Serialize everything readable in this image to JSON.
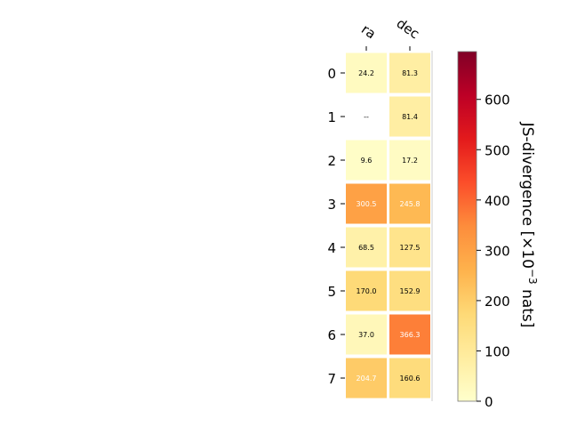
{
  "chart_data": {
    "type": "heatmap",
    "columns": [
      "ra",
      "dec"
    ],
    "rows": [
      "0",
      "1",
      "2",
      "3",
      "4",
      "5",
      "6",
      "7"
    ],
    "values": [
      [
        24.2,
        81.3
      ],
      [
        null,
        81.4
      ],
      [
        9.6,
        17.2
      ],
      [
        300.5,
        245.8
      ],
      [
        68.5,
        127.5
      ],
      [
        170.0,
        152.9
      ],
      [
        37.0,
        366.3
      ],
      [
        204.7,
        160.6
      ]
    ],
    "cell_labels": [
      [
        "24.2",
        "81.3"
      ],
      [
        "--",
        "81.4"
      ],
      [
        "9.6",
        "17.2"
      ],
      [
        "300.5",
        "245.8"
      ],
      [
        "68.5",
        "127.5"
      ],
      [
        "170.0",
        "152.9"
      ],
      [
        "37.0",
        "366.3"
      ],
      [
        "204.7",
        "160.6"
      ]
    ],
    "colormap": "YlOrRd",
    "colorbar": {
      "label_base": "JS-divergence [×10",
      "label_exp": "−3",
      "label_tail": " nats]",
      "range": [
        0,
        695
      ],
      "ticks": [
        "0",
        "100",
        "200",
        "300",
        "400",
        "500",
        "600"
      ],
      "tick_values": [
        0,
        100,
        200,
        300,
        400,
        500,
        600
      ]
    },
    "grid": false
  }
}
